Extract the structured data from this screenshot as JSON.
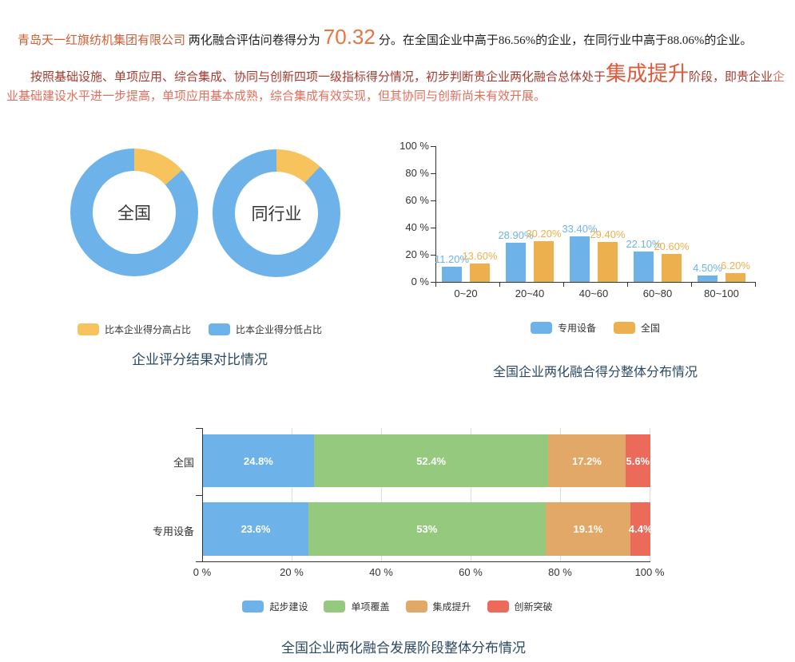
{
  "colors": {
    "accent_orange": "#cb5f36",
    "score_orange": "#e8743f",
    "dark_red": "#a53a2e",
    "stage_red": "#e3573a",
    "light_red": "#e0705c",
    "body_text": "#1f1f1f",
    "title_navy": "#2c4a63",
    "axis_gray": "#333333",
    "grid_gray": "#dddddd",
    "series_blue": "#6db3ea",
    "pie_yellow": "#f7c35c",
    "series_yellow": "#edb04e",
    "series_green": "#95c97e",
    "series_tan": "#e2a868",
    "series_red": "#eb6a5a"
  },
  "header": {
    "line1": {
      "company": "青岛天一红旗纺机集团有限公司",
      "pre_score": "两化融合评估问卷得分为",
      "score": "70.32",
      "post_score": "分。在全国企业中高于86.56%的企业，在同行业中高于88.06%的企业。"
    },
    "line2": {
      "lead": "按照基础设施、单项应用、综合集成、协同与创新四项一级指标得分情况，初步判断贵企业两化融合总体处于",
      "stage": "集成提升",
      "mid": "阶段，即贵企业",
      "tail": "企业基础建设水平进一步提高，单项应用基本成熟，综合集成有效实现，但其协同与创新尚未有效开展。"
    }
  },
  "donut_section": {
    "title": "企业评分结果对比情况"
  },
  "chart_data": [
    {
      "type": "pie",
      "name": "national-donut",
      "label": "全国",
      "slices": [
        {
          "name": "比本企业得分高占比",
          "value": 13.44,
          "color": "#f7c35c"
        },
        {
          "name": "比本企业得分低占比",
          "value": 86.56,
          "color": "#6db3ea"
        }
      ]
    },
    {
      "type": "pie",
      "name": "industry-donut",
      "label": "同行业",
      "slices": [
        {
          "name": "比本企业得分高占比",
          "value": 11.94,
          "color": "#f7c35c"
        },
        {
          "name": "比本企业得分低占比",
          "value": 88.06,
          "color": "#6db3ea"
        }
      ]
    },
    {
      "type": "bar",
      "title": "全国企业两化融合得分整体分布情况",
      "categories": [
        "0~20",
        "20~40",
        "40~60",
        "60~80",
        "80~100"
      ],
      "y_ticks": [
        "100 %",
        "80 %",
        "60 %",
        "40 %",
        "20 %",
        "0 %"
      ],
      "ylim": [
        0,
        100
      ],
      "series": [
        {
          "name": "专用设备",
          "color": "#6db3ea",
          "values": [
            11.2,
            28.9,
            33.4,
            22.1,
            4.5
          ],
          "labels": [
            "11.20%",
            "28.90%",
            "33.40%",
            "22.10%",
            "4.50%"
          ]
        },
        {
          "name": "全国",
          "color": "#edb04e",
          "values": [
            13.6,
            30.2,
            29.4,
            20.6,
            6.2
          ],
          "labels": [
            "13.60%",
            "30.20%",
            "29.40%",
            "20.60%",
            "6.20%"
          ]
        }
      ]
    },
    {
      "type": "stacked-bar",
      "title": "全国企业两化融合发展阶段整体分布情况",
      "x_ticks": [
        "0 %",
        "20 %",
        "40 %",
        "60 %",
        "80 %",
        "100 %"
      ],
      "xlim": [
        0,
        100
      ],
      "segments": [
        {
          "name": "起步建设",
          "color": "#6db3ea"
        },
        {
          "name": "单项覆盖",
          "color": "#95c97e"
        },
        {
          "name": "集成提升",
          "color": "#e2a868"
        },
        {
          "name": "创新突破",
          "color": "#eb6a5a"
        }
      ],
      "rows": [
        {
          "label": "全国",
          "values": [
            24.8,
            52.4,
            17.2,
            5.6
          ],
          "labels": [
            "24.8%",
            "52.4%",
            "17.2%",
            "5.6%"
          ]
        },
        {
          "label": "专用设备",
          "values": [
            23.6,
            53,
            19.1,
            4.4
          ],
          "labels": [
            "23.6%",
            "53%",
            "19.1%",
            "4.4%"
          ]
        }
      ]
    }
  ]
}
